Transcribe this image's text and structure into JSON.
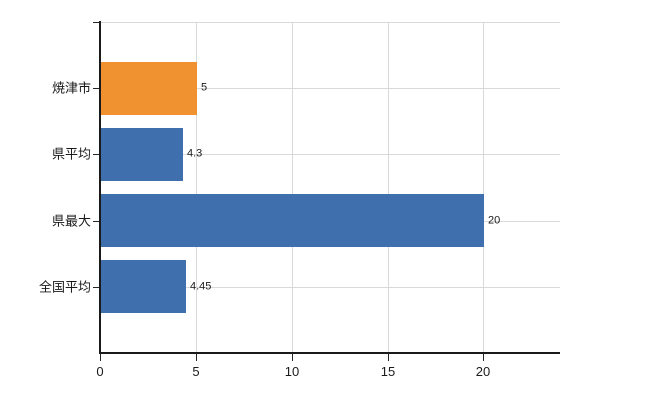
{
  "chart_data": {
    "type": "bar",
    "orientation": "horizontal",
    "title": "",
    "xlabel": "",
    "ylabel": "",
    "categories": [
      "焼津市",
      "県平均",
      "県最大",
      "全国平均"
    ],
    "values": [
      5,
      4.3,
      20,
      4.45
    ],
    "value_labels": [
      "5",
      "4.3",
      "20",
      "4.45"
    ],
    "bar_colors": [
      "#f0922f",
      "#3f70ad",
      "#3f70ad",
      "#3f70ad"
    ],
    "x_ticks": [
      0,
      5,
      10,
      15,
      20
    ],
    "x_tick_labels": [
      "0",
      "5",
      "10",
      "15",
      "20"
    ],
    "xlim": [
      0,
      24
    ],
    "grid": true,
    "legend": "none"
  },
  "colors": {
    "highlight_bar": "#f0922f",
    "default_bar": "#3f70ad",
    "gridline": "#d9d9d9",
    "axis": "#1a1a1a",
    "background": "#ffffff",
    "text": "#1a1a1a"
  }
}
